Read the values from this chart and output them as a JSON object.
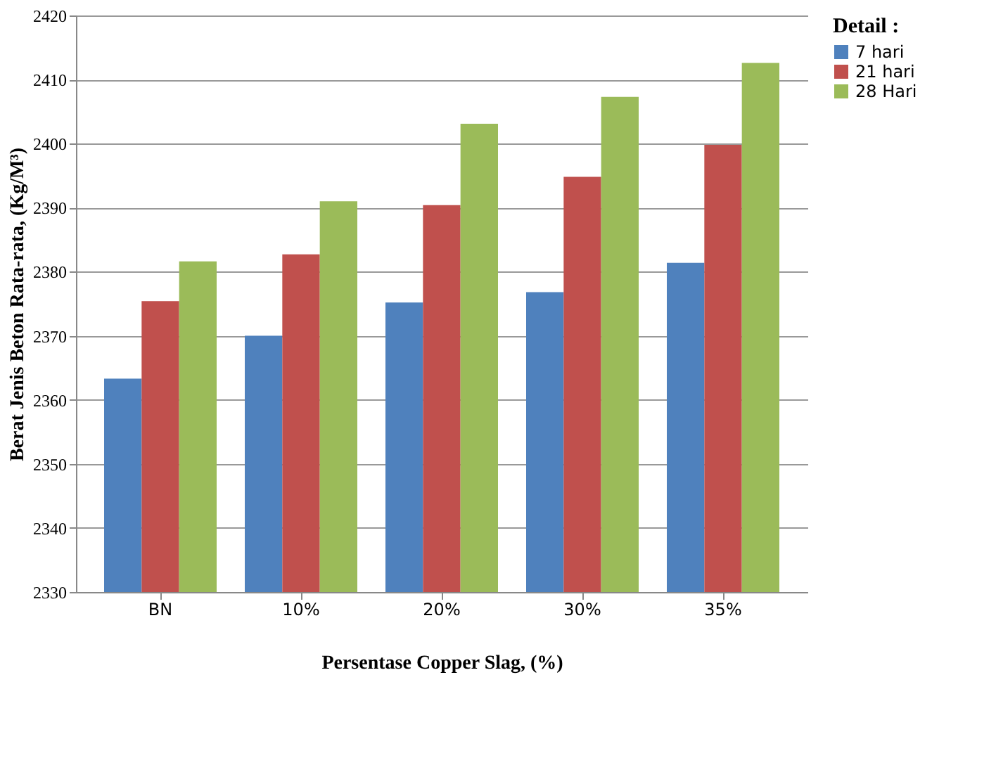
{
  "chart_data": {
    "type": "bar",
    "xlabel": "Persentase Copper Slag, (%)",
    "ylabel": "Berat Jenis Beton Rata-rata, (Kg/M³)",
    "legend_title": "Detail :",
    "categories": [
      "BN",
      "10%",
      "20%",
      "30%",
      "35%"
    ],
    "series": [
      {
        "name": "7 hari",
        "color": "#4f81bd",
        "values": [
          2363.3,
          2370.0,
          2375.2,
          2376.8,
          2381.4
        ]
      },
      {
        "name": "21 hari",
        "color": "#c0504d",
        "values": [
          2375.4,
          2382.7,
          2390.4,
          2394.8,
          2399.8
        ]
      },
      {
        "name": "28 Hari",
        "color": "#9bbb59",
        "values": [
          2381.6,
          2391.0,
          2403.1,
          2407.3,
          2412.6
        ]
      }
    ],
    "ylim": [
      2330,
      2420
    ],
    "yticks": [
      2330,
      2340,
      2350,
      2360,
      2370,
      2380,
      2390,
      2400,
      2410,
      2420
    ],
    "grid": "y",
    "legend": "right"
  }
}
